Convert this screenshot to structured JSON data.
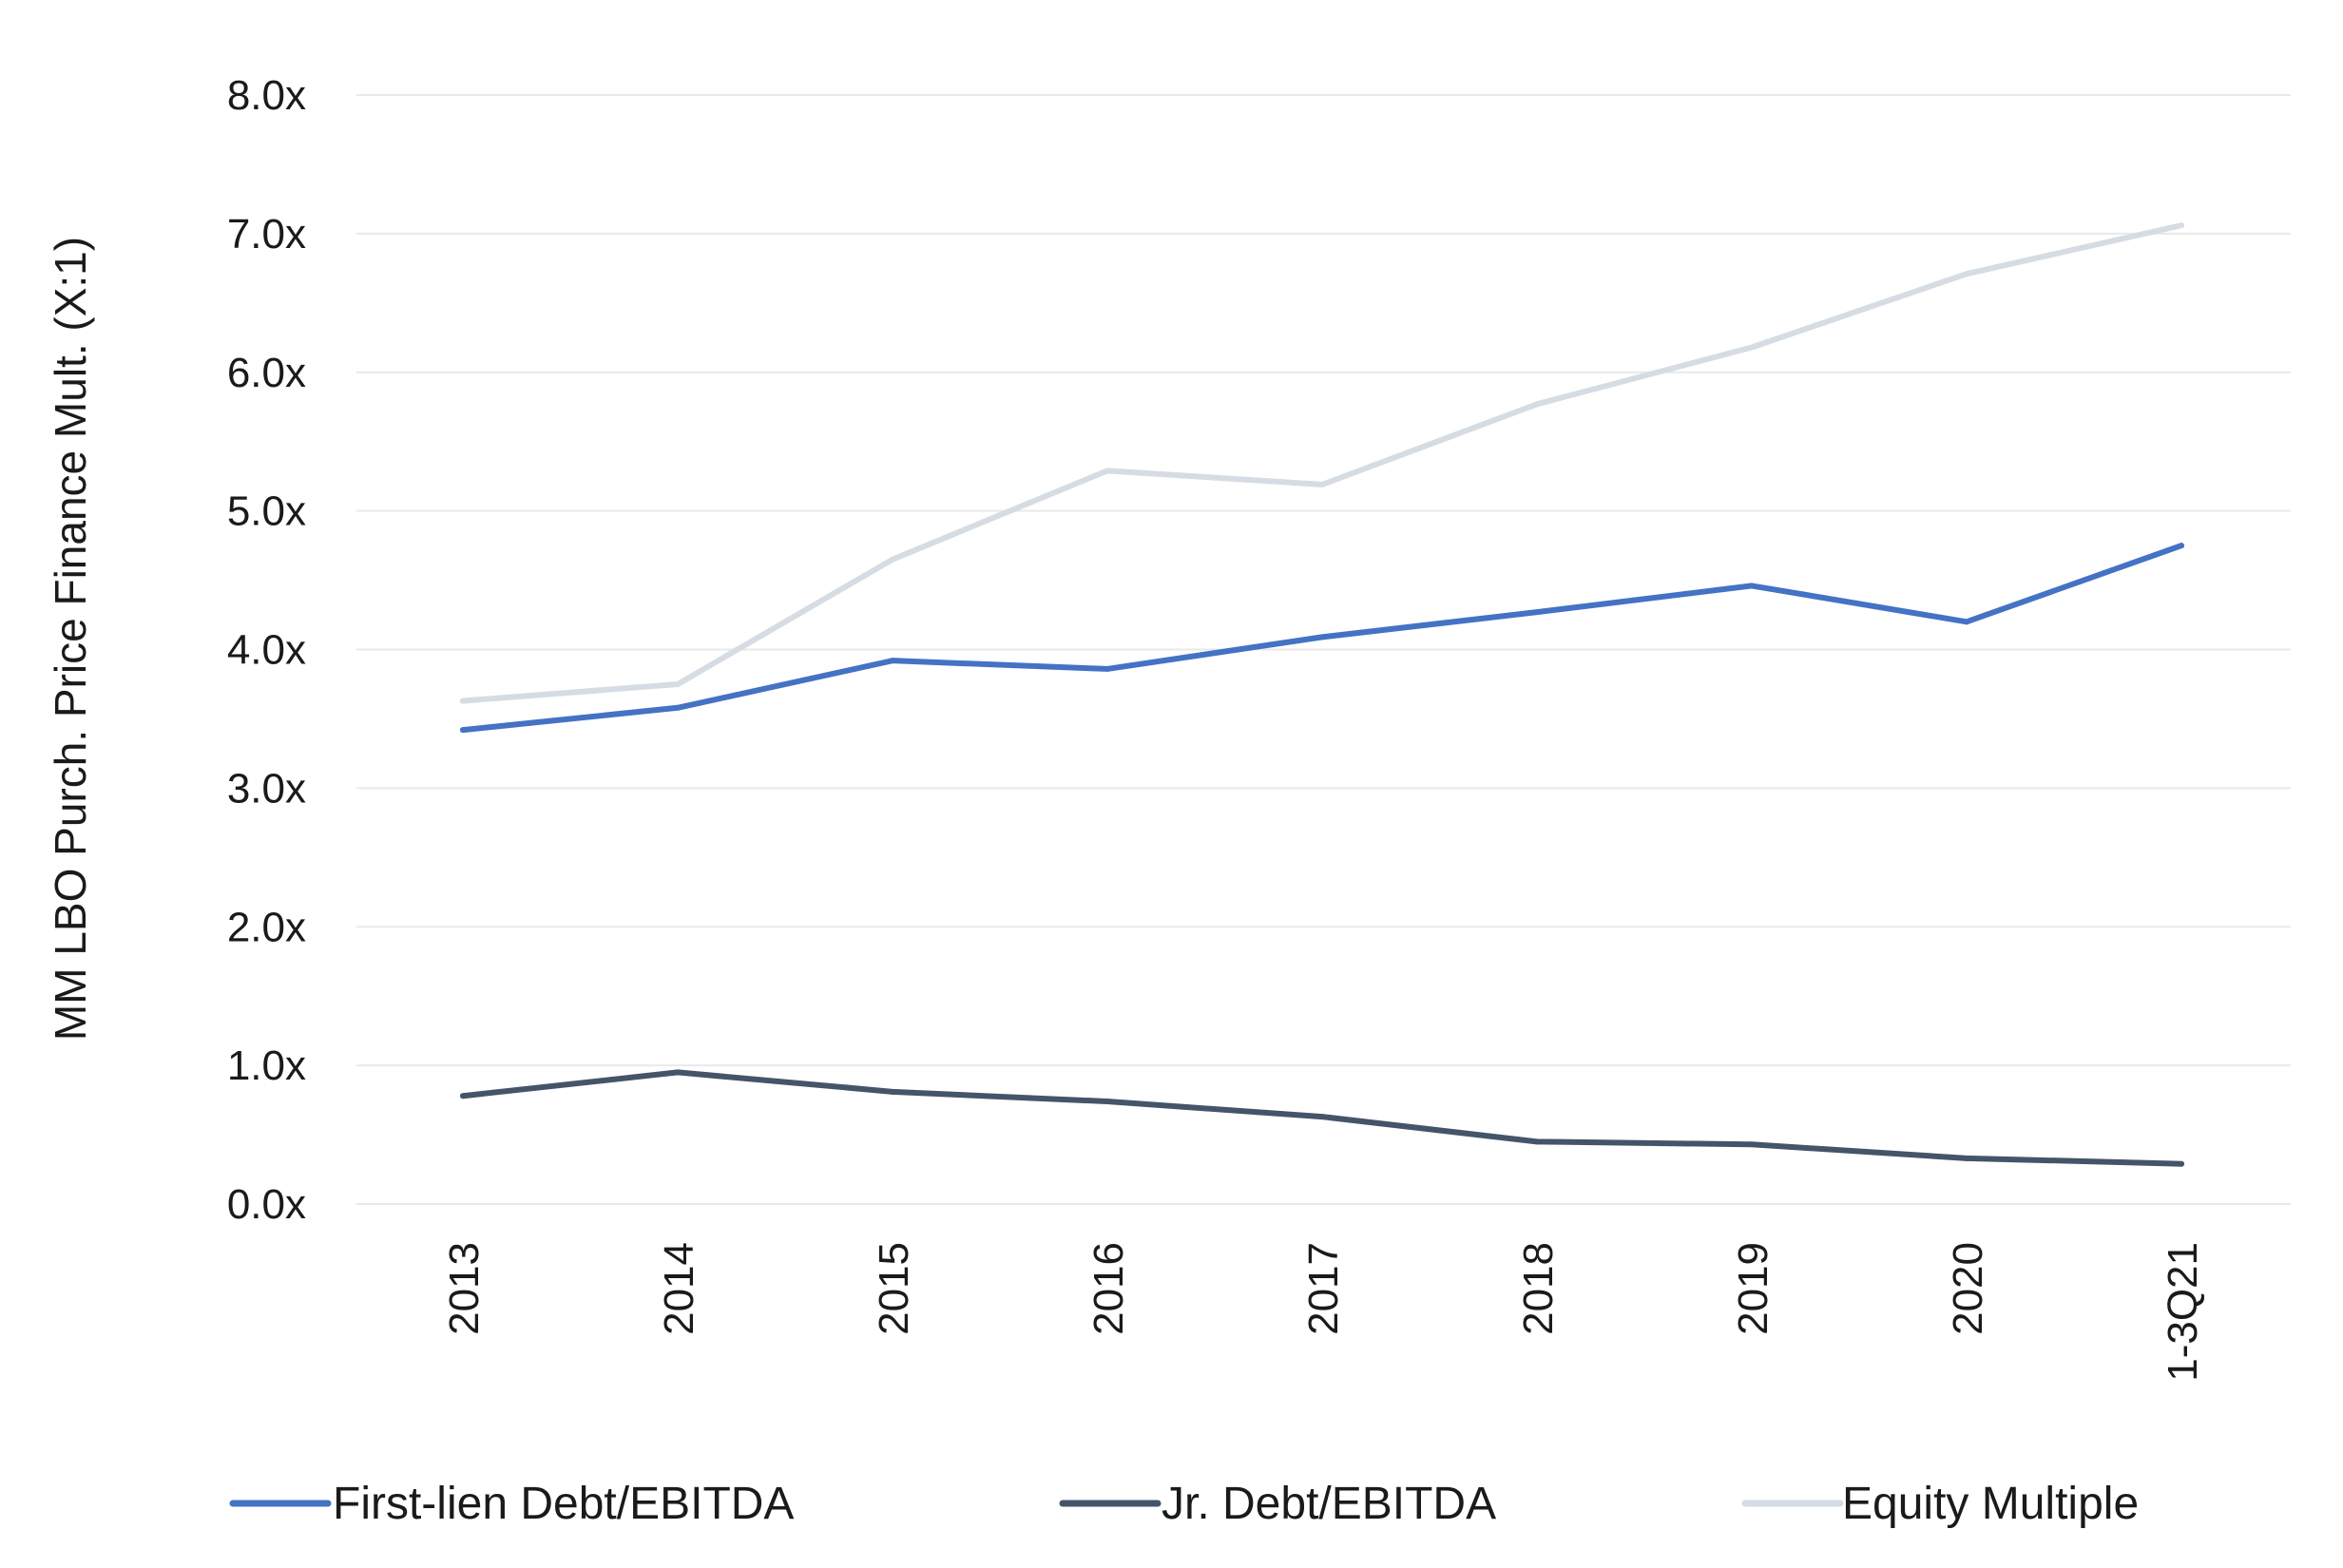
{
  "chart_data": {
    "type": "line",
    "title": "",
    "xlabel": "",
    "ylabel": "MM LBO Purch. Price Finance Mult. (X:1)",
    "ylim": [
      0,
      8
    ],
    "y_ticks": [
      "0.0x",
      "1.0x",
      "2.0x",
      "3.0x",
      "4.0x",
      "5.0x",
      "6.0x",
      "7.0x",
      "8.0x"
    ],
    "categories": [
      "2013",
      "2014",
      "2015",
      "2016",
      "2017",
      "2018",
      "2019",
      "2020",
      "1-3Q21"
    ],
    "grid": true,
    "legend_position": "bottom",
    "series": [
      {
        "name": "First-lien Debt/EBITDA",
        "color": "#4472c4",
        "values": [
          3.42,
          3.58,
          3.92,
          3.86,
          4.09,
          4.27,
          4.46,
          4.2,
          4.75
        ]
      },
      {
        "name": "Jr. Debt/EBITDA",
        "color": "#44546a",
        "values": [
          0.78,
          0.95,
          0.81,
          0.74,
          0.63,
          0.45,
          0.43,
          0.33,
          0.29
        ]
      },
      {
        "name": "Equity Multiple",
        "color": "#d6dce4",
        "values": [
          3.63,
          3.75,
          4.65,
          5.29,
          5.19,
          5.77,
          6.18,
          6.71,
          7.06
        ]
      }
    ]
  }
}
